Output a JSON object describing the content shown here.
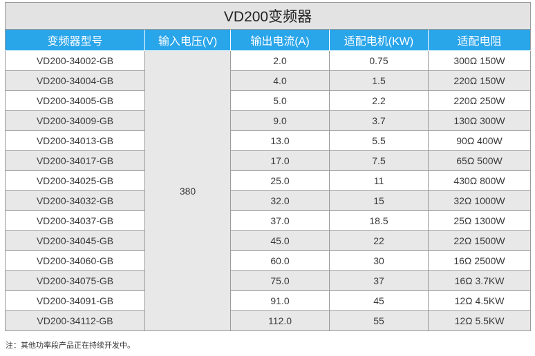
{
  "title": "VD200变频器",
  "headers": [
    "变频器型号",
    "输入电压(V)",
    "输出电流(A)",
    "适配电机(KW)",
    "适配电阻"
  ],
  "voltage": "380",
  "rows": [
    {
      "model": "VD200-34002-GB",
      "current": "2.0",
      "motor": "0.75",
      "resistor": "300Ω  150W"
    },
    {
      "model": "VD200-34004-GB",
      "current": "4.0",
      "motor": "1.5",
      "resistor": "220Ω  150W"
    },
    {
      "model": "VD200-34005-GB",
      "current": "5.0",
      "motor": "2.2",
      "resistor": "220Ω  250W"
    },
    {
      "model": "VD200-34009-GB",
      "current": "9.0",
      "motor": "3.7",
      "resistor": "130Ω  300W"
    },
    {
      "model": "VD200-34013-GB",
      "current": "13.0",
      "motor": "5.5",
      "resistor": "90Ω  400W"
    },
    {
      "model": "VD200-34017-GB",
      "current": "17.0",
      "motor": "7.5",
      "resistor": "65Ω  500W"
    },
    {
      "model": "VD200-34025-GB",
      "current": "25.0",
      "motor": "11",
      "resistor": "430Ω  800W"
    },
    {
      "model": "VD200-34032-GB",
      "current": "32.0",
      "motor": "15",
      "resistor": "32Ω  1000W"
    },
    {
      "model": "VD200-34037-GB",
      "current": "37.0",
      "motor": "18.5",
      "resistor": "25Ω  1300W"
    },
    {
      "model": "VD200-34045-GB",
      "current": "45.0",
      "motor": "22",
      "resistor": "22Ω  1500W"
    },
    {
      "model": "VD200-34060-GB",
      "current": "60.0",
      "motor": "30",
      "resistor": "16Ω  2500W"
    },
    {
      "model": "VD200-34075-GB",
      "current": "75.0",
      "motor": "37",
      "resistor": "16Ω  3.7KW"
    },
    {
      "model": "VD200-34091-GB",
      "current": "91.0",
      "motor": "45",
      "resistor": "12Ω  4.5KW"
    },
    {
      "model": "VD200-34112-GB",
      "current": "112.0",
      "motor": "55",
      "resistor": "12Ω  5.5KW"
    }
  ],
  "note": "注：其他功率段产品正在持续开发中。"
}
